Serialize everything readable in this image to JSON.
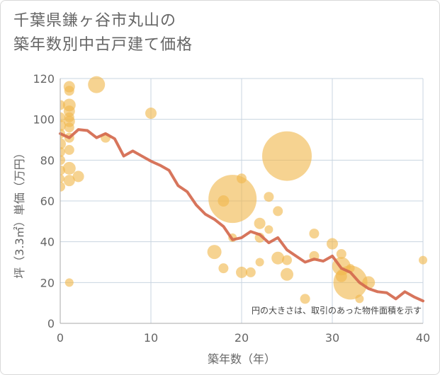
{
  "chart_data": {
    "type": "scatter",
    "title": [
      "千葉県鎌ヶ谷市丸山の",
      "築年数別中古戸建て価格"
    ],
    "xlabel": "築年数（年）",
    "ylabel": "坪（3.3㎡）単価（万円）",
    "xlim": [
      0,
      40
    ],
    "ylim": [
      0,
      120
    ],
    "xticks": [
      0,
      10,
      20,
      30,
      40
    ],
    "yticks": [
      0,
      20,
      40,
      60,
      80,
      100,
      120
    ],
    "grid": true,
    "annotation": "円の大きさは、取引のあった物件面積を示す",
    "colors": {
      "bubble": "#f0b84e",
      "line": "#d4694e",
      "grid": "#c8d4e0",
      "axis": "#aaaaaa"
    },
    "bubbles": [
      {
        "x": 0,
        "y": 107,
        "s": 7
      },
      {
        "x": 0,
        "y": 101,
        "s": 7
      },
      {
        "x": 0,
        "y": 97,
        "s": 8
      },
      {
        "x": 0,
        "y": 93,
        "s": 7
      },
      {
        "x": 0,
        "y": 88,
        "s": 8
      },
      {
        "x": 0,
        "y": 84,
        "s": 7
      },
      {
        "x": 0,
        "y": 80,
        "s": 7
      },
      {
        "x": 0,
        "y": 75,
        "s": 7
      },
      {
        "x": 0,
        "y": 71,
        "s": 6
      },
      {
        "x": 0,
        "y": 67,
        "s": 7
      },
      {
        "x": 1,
        "y": 116,
        "s": 8
      },
      {
        "x": 1,
        "y": 114,
        "s": 7
      },
      {
        "x": 1,
        "y": 107,
        "s": 9
      },
      {
        "x": 1,
        "y": 104,
        "s": 8
      },
      {
        "x": 1,
        "y": 101,
        "s": 7
      },
      {
        "x": 1,
        "y": 99,
        "s": 8
      },
      {
        "x": 1,
        "y": 96,
        "s": 7
      },
      {
        "x": 1,
        "y": 91,
        "s": 7
      },
      {
        "x": 1,
        "y": 85,
        "s": 7
      },
      {
        "x": 1,
        "y": 76,
        "s": 9
      },
      {
        "x": 1,
        "y": 70,
        "s": 8
      },
      {
        "x": 1,
        "y": 20,
        "s": 6
      },
      {
        "x": 2,
        "y": 72,
        "s": 8
      },
      {
        "x": 4,
        "y": 117,
        "s": 12
      },
      {
        "x": 5,
        "y": 91,
        "s": 7
      },
      {
        "x": 10,
        "y": 103,
        "s": 8
      },
      {
        "x": 17,
        "y": 35,
        "s": 10
      },
      {
        "x": 18,
        "y": 27,
        "s": 7
      },
      {
        "x": 18,
        "y": 60,
        "s": 8
      },
      {
        "x": 19,
        "y": 61,
        "s": 34
      },
      {
        "x": 19,
        "y": 42,
        "s": 6
      },
      {
        "x": 20,
        "y": 71,
        "s": 7
      },
      {
        "x": 20,
        "y": 25,
        "s": 8
      },
      {
        "x": 21,
        "y": 25,
        "s": 7
      },
      {
        "x": 22,
        "y": 49,
        "s": 8
      },
      {
        "x": 22,
        "y": 42,
        "s": 7
      },
      {
        "x": 22,
        "y": 30,
        "s": 6
      },
      {
        "x": 23,
        "y": 62,
        "s": 7
      },
      {
        "x": 23,
        "y": 46,
        "s": 6
      },
      {
        "x": 24,
        "y": 55,
        "s": 7
      },
      {
        "x": 24,
        "y": 32,
        "s": 9
      },
      {
        "x": 25,
        "y": 82,
        "s": 35
      },
      {
        "x": 25,
        "y": 31,
        "s": 7
      },
      {
        "x": 25,
        "y": 24,
        "s": 9
      },
      {
        "x": 27,
        "y": 12,
        "s": 7
      },
      {
        "x": 28,
        "y": 44,
        "s": 7
      },
      {
        "x": 28,
        "y": 33,
        "s": 7
      },
      {
        "x": 30,
        "y": 39,
        "s": 8
      },
      {
        "x": 31,
        "y": 34,
        "s": 7
      },
      {
        "x": 31,
        "y": 28,
        "s": 13
      },
      {
        "x": 31,
        "y": 23,
        "s": 8
      },
      {
        "x": 32,
        "y": 20,
        "s": 24
      },
      {
        "x": 32,
        "y": 27,
        "s": 6
      },
      {
        "x": 33,
        "y": 12,
        "s": 6
      },
      {
        "x": 34,
        "y": 20,
        "s": 9
      },
      {
        "x": 40,
        "y": 31,
        "s": 6
      }
    ],
    "line": {
      "x": [
        0,
        1,
        2,
        3,
        4,
        5,
        6,
        7,
        8,
        9,
        10,
        11,
        12,
        13,
        14,
        15,
        16,
        17,
        18,
        19,
        20,
        21,
        22,
        23,
        24,
        25,
        26,
        27,
        28,
        29,
        30,
        31,
        32,
        33,
        34,
        35,
        36,
        37,
        38,
        39,
        40
      ],
      "y": [
        93,
        91,
        95,
        94.5,
        91,
        93,
        90.5,
        82,
        84.5,
        82,
        79.5,
        77.5,
        75,
        67.5,
        64.5,
        58,
        53.5,
        51,
        47.5,
        41,
        42,
        45,
        43.5,
        39.5,
        42,
        36,
        33,
        30,
        31.5,
        30.5,
        33,
        27,
        25,
        20,
        17,
        15.5,
        15,
        12,
        15.5,
        13,
        11
      ]
    }
  }
}
